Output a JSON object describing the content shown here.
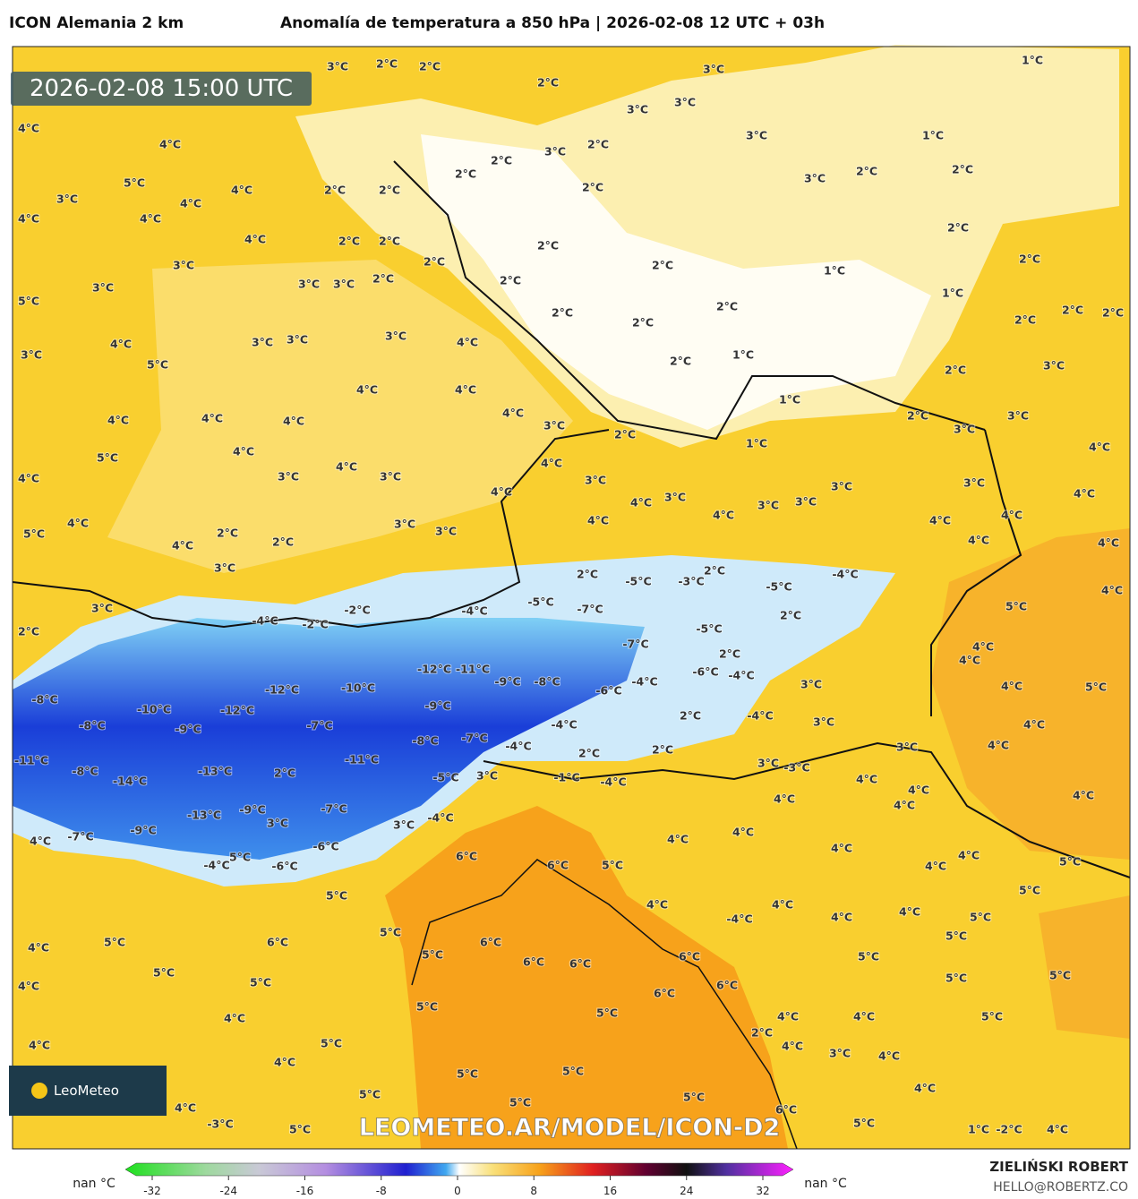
{
  "header": {
    "model": "ICON Alemania 2 km",
    "title": "Anomalía de temperatura a 850 hPa | 2026-02-08 12 UTC + 03h"
  },
  "map": {
    "timestamp": "2026-02-08 15:00 UTC",
    "watermark": "LEOMETEO.AR/MODEL/ICON-D2",
    "logo": "LeoMeteo",
    "labels": [
      "3°C",
      "2°C",
      "2°C",
      "2°C",
      "3°C",
      "1°C",
      "4°C",
      "3°C",
      "3°C",
      "4°C",
      "3°C",
      "1°C",
      "2°C",
      "2°C",
      "3°C",
      "2°C",
      "5°C",
      "3°C",
      "4°C",
      "4°C",
      "2°C",
      "2°C",
      "2°C",
      "3°C",
      "2°C",
      "2°C",
      "4°C",
      "4°C",
      "4°C",
      "2°C",
      "2°C",
      "2°C",
      "2°C",
      "3°C",
      "2°C",
      "2°C",
      "1°C",
      "2°C",
      "5°C",
      "3°C",
      "3°C",
      "3°C",
      "2°C",
      "2°C",
      "2°C",
      "2°C",
      "1°C",
      "2°C",
      "2°C",
      "2°C",
      "2°C",
      "3°C",
      "3°C",
      "3°C",
      "4°C",
      "4°C",
      "3°C",
      "5°C",
      "2°C",
      "1°C",
      "2°C",
      "3°C",
      "4°C",
      "4°C",
      "1°C",
      "4°C",
      "3°C",
      "2°C",
      "2°C",
      "3°C",
      "3°C",
      "4°C",
      "4°C",
      "4°C",
      "1°C",
      "4°C",
      "5°C",
      "4°C",
      "4°C",
      "4°C",
      "3°C",
      "3°C",
      "4°C",
      "3°C",
      "3°C",
      "3°C",
      "4°C",
      "4°C",
      "4°C",
      "3°C",
      "3°C",
      "3°C",
      "4°C",
      "5°C",
      "2°C",
      "3°C",
      "3°C",
      "4°C",
      "4°C",
      "4°C",
      "4°C",
      "4°C",
      "4°C",
      "2°C",
      "4°C",
      "3°C",
      "2°C",
      "2°C",
      "-5°C",
      "-3°C",
      "-5°C",
      "-4°C",
      "3°C",
      "-4°C",
      "-5°C",
      "-7°C",
      "5°C",
      "4°C",
      "2°C",
      "-4°C",
      "-2°C",
      "-2°C",
      "2°C",
      "-5°C",
      "4°C",
      "-7°C",
      "2°C",
      "-12°C",
      "-11°C",
      "-6°C",
      "-4°C",
      "4°C",
      "-8°C",
      "-12°C",
      "-10°C",
      "-9°C",
      "-8°C",
      "-6°C",
      "-4°C",
      "3°C",
      "4°C",
      "-10°C",
      "-12°C",
      "-9°C",
      "2°C",
      "-4°C",
      "5°C",
      "-8°C",
      "-9°C",
      "-7°C",
      "-4°C",
      "3°C",
      "4°C",
      "-8°C",
      "-7°C",
      "-4°C",
      "2°C",
      "3°C",
      "4°C",
      "-11°C",
      "-8°C",
      "-13°C",
      "-11°C",
      "2°C",
      "3°C",
      "-3°C",
      "-14°C",
      "3°C",
      "-5°C",
      "-1°C",
      "-4°C",
      "2°C",
      "4°C",
      "4°C",
      "4°C",
      "-13°C",
      "-9°C",
      "-7°C",
      "4°C",
      "-4°C",
      "3°C",
      "3°C",
      "4°C",
      "4°C",
      "-7°C",
      "-9°C",
      "4°C",
      "4°C",
      "-6°C",
      "-4°C",
      "-6°C",
      "6°C",
      "5°C",
      "5°C",
      "6°C",
      "4°C",
      "4°C",
      "4°C",
      "5°C",
      "5°C",
      "5°C",
      "4°C",
      "4°C",
      "4°C",
      "4°C",
      "-4°C",
      "5°C",
      "4°C",
      "5°C",
      "6°C",
      "5°C",
      "6°C",
      "5°C",
      "6°C",
      "5°C",
      "5°C",
      "6°C",
      "6°C",
      "5°C",
      "5°C",
      "4°C",
      "5°C",
      "5°C",
      "6°C",
      "6°C",
      "5°C",
      "4°C",
      "5°C",
      "4°C",
      "4°C",
      "5°C",
      "2°C",
      "4°C",
      "5°C",
      "4°C",
      "3°C",
      "4°C",
      "4°C",
      "5°C",
      "5°C",
      "5°C",
      "5°C",
      "5°C",
      "4°C",
      "4°C",
      "-3°C",
      "5°C",
      "6°C",
      "1°C",
      "-2°C",
      "4°C",
      "5°C"
    ]
  },
  "colorbar": {
    "ticks": [
      -32,
      -24,
      -16,
      -8,
      0,
      8,
      16,
      24,
      32
    ],
    "left_label": "nan °C",
    "right_label": "nan °C"
  },
  "credits": {
    "author": "ZIELIŃSKI ROBERT",
    "email": "HELLO@ROBERTZ.CO"
  }
}
